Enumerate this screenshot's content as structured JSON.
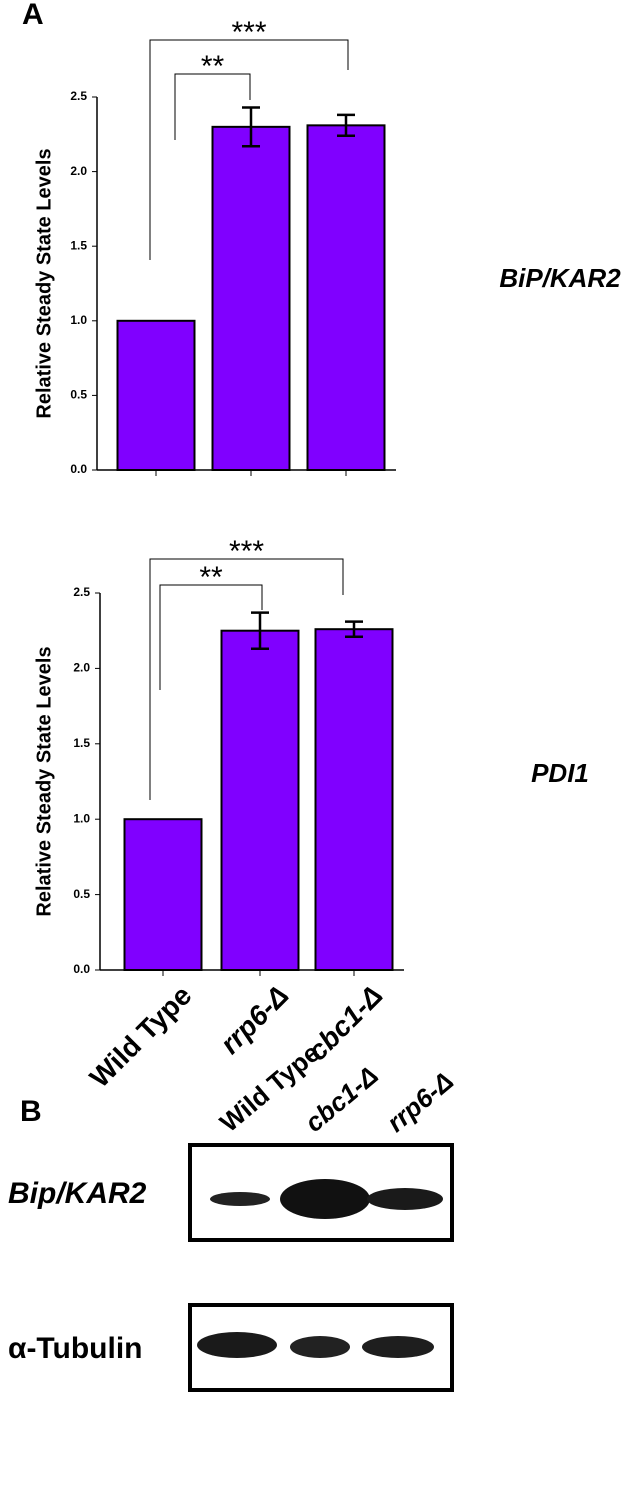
{
  "panel_a_label": "A",
  "chart_data": [
    {
      "type": "bar",
      "ylabel": "Relative Steady State Levels",
      "annotation": "BiP/KAR2",
      "categories": [
        null,
        null,
        null
      ],
      "values": [
        1.0,
        2.3,
        2.31
      ],
      "errors": [
        null,
        0.13,
        0.07
      ],
      "color": "#8000ff",
      "ylim": [
        0,
        2.5
      ],
      "yticks": [
        {
          "value": 0,
          "label": "0.0"
        },
        0.5,
        {
          "value": 1,
          "label": "1.0"
        },
        1.5,
        {
          "value": 2,
          "label": "2.0"
        },
        2.5
      ],
      "significance": [
        "**",
        "***"
      ]
    },
    {
      "type": "bar",
      "ylabel": "Relative Steady State Levels",
      "annotation": "PDI1",
      "categories": [
        "Wild Type",
        "rrp6-Δ",
        "cbc1-Δ"
      ],
      "values": [
        1.0,
        2.25,
        2.26
      ],
      "errors": [
        null,
        0.12,
        0.05
      ],
      "color": "#8000ff",
      "ylim": [
        0,
        2.5
      ],
      "yticks": [
        {
          "value": 0,
          "label": "0.0"
        },
        0.5,
        {
          "value": 1,
          "label": "1.0"
        },
        1.5,
        {
          "value": 2,
          "label": "2.0"
        },
        2.5
      ],
      "significance": [
        "**",
        "***"
      ]
    }
  ],
  "blot": {
    "panel_label": "B",
    "lanes": [
      "Wild Type",
      "cbc1-Δ",
      "rrp6-Δ"
    ],
    "rows": [
      "Bip/KAR2",
      "α-Tubulin"
    ]
  }
}
